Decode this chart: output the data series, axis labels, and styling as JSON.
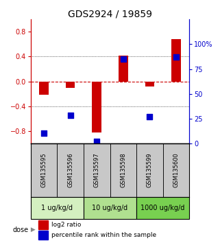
{
  "title": "GDS2924 / 19859",
  "samples": [
    "GSM135595",
    "GSM135596",
    "GSM135597",
    "GSM135598",
    "GSM135599",
    "GSM135600"
  ],
  "log2_ratio": [
    -0.22,
    -0.1,
    -0.82,
    0.42,
    -0.08,
    0.68
  ],
  "percentile_rank": [
    10,
    28,
    2,
    85,
    27,
    87
  ],
  "dose_groups": [
    {
      "label": "1 ug/kg/d",
      "samples": [
        0,
        1
      ],
      "color": "#d4f0c0"
    },
    {
      "label": "10 ug/kg/d",
      "samples": [
        2,
        3
      ],
      "color": "#b0e090"
    },
    {
      "label": "1000 ug/kg/d",
      "samples": [
        4,
        5
      ],
      "color": "#78d050"
    }
  ],
  "ylim_left": [
    -1.0,
    1.0
  ],
  "yticks_left": [
    -0.8,
    -0.4,
    0.0,
    0.4,
    0.8
  ],
  "ylim_right": [
    0,
    125
  ],
  "yticks_right": [
    0,
    25,
    50,
    75,
    100
  ],
  "ytick_labels_right": [
    "0",
    "25",
    "50",
    "75",
    "100%"
  ],
  "bar_color": "#cc0000",
  "dot_color": "#0000cc",
  "hline_color": "#cc0000",
  "dotted_lines": [
    -0.4,
    0.4
  ],
  "dot_size": 28,
  "bar_width": 0.35,
  "sample_bg_color": "#c8c8c8",
  "dose_arrow_label": "dose",
  "legend_red_label": "log2 ratio",
  "legend_blue_label": "percentile rank within the sample",
  "title_fontsize": 10,
  "tick_fontsize": 7,
  "sample_fontsize": 6,
  "dose_fontsize": 7,
  "legend_fontsize": 6.5
}
